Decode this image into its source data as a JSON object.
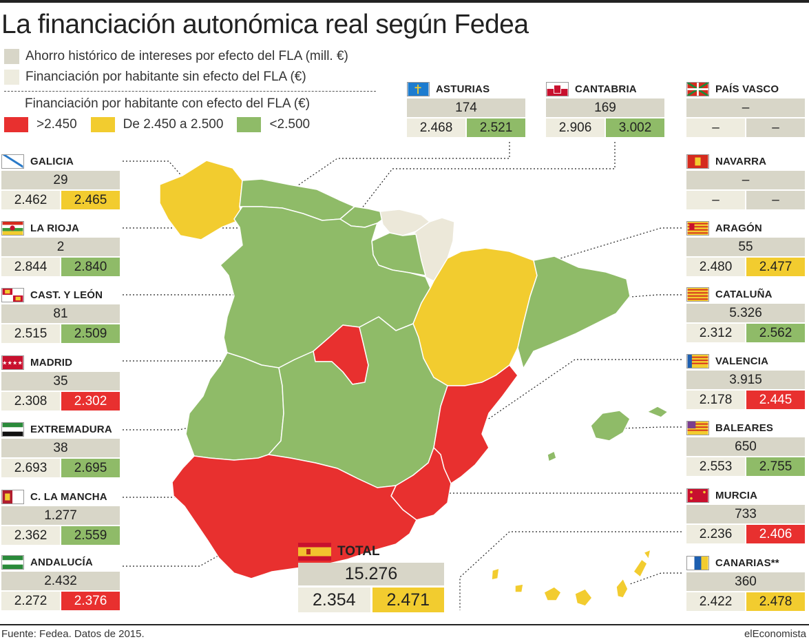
{
  "title": "La financiación autonómica real según Fedea",
  "legend": {
    "ahorro": "Ahorro histórico de intereses por efecto del FLA (mill. €)",
    "sin": "Financiación por habitante sin efecto del FLA (€)",
    "con": "Financiación por habitante con efecto del FLA (€)",
    "cat_red": ">2.450",
    "cat_yellow": "De 2.450 a 2.500",
    "cat_green": "<2.500"
  },
  "colors": {
    "red": "#e8302f",
    "yellow": "#f2cc2f",
    "green": "#8fbb68",
    "ahorro_grey": "#d8d6c8",
    "sin_beige": "#eeecdf",
    "no_data": "#ece8d9"
  },
  "regions": [
    {
      "id": "galicia",
      "name": "GALICIA",
      "flag": "flag-galicia-icon",
      "ahorro": "29",
      "sin": "2.462",
      "con": "2.465",
      "category": "yellow"
    },
    {
      "id": "larioja",
      "name": "LA RIOJA",
      "flag": "flag-la-rioja-icon",
      "ahorro": "2",
      "sin": "2.844",
      "con": "2.840",
      "category": "green"
    },
    {
      "id": "castleon",
      "name": "CAST. Y LEÓN",
      "flag": "flag-castilla-leon-icon",
      "ahorro": "81",
      "sin": "2.515",
      "con": "2.509",
      "category": "green"
    },
    {
      "id": "madrid",
      "name": "MADRID",
      "flag": "flag-madrid-icon",
      "ahorro": "35",
      "sin": "2.308",
      "con": "2.302",
      "category": "red"
    },
    {
      "id": "extremadura",
      "name": "EXTREMADURA",
      "flag": "flag-extremadura-icon",
      "ahorro": "38",
      "sin": "2.693",
      "con": "2.695",
      "category": "green"
    },
    {
      "id": "clamancha",
      "name": "C. LA MANCHA",
      "flag": "flag-castilla-la-mancha-icon",
      "ahorro": "1.277",
      "sin": "2.362",
      "con": "2.559",
      "category": "green"
    },
    {
      "id": "andalucia",
      "name": "ANDALUCÍA",
      "flag": "flag-andalucia-icon",
      "ahorro": "2.432",
      "sin": "2.272",
      "con": "2.376",
      "category": "red"
    },
    {
      "id": "asturias",
      "name": "ASTURIAS",
      "flag": "flag-asturias-icon",
      "ahorro": "174",
      "sin": "2.468",
      "con": "2.521",
      "category": "green"
    },
    {
      "id": "cantabria",
      "name": "CANTABRIA",
      "flag": "flag-cantabria-icon",
      "ahorro": "169",
      "sin": "2.906",
      "con": "3.002",
      "category": "green"
    },
    {
      "id": "paisvasco",
      "name": "PAÍS VASCO",
      "flag": "flag-pais-vasco-icon",
      "ahorro": "–",
      "sin": "–",
      "con": "–",
      "category": "none"
    },
    {
      "id": "navarra",
      "name": "NAVARRA",
      "flag": "flag-navarra-icon",
      "ahorro": "–",
      "sin": "–",
      "con": "–",
      "category": "none"
    },
    {
      "id": "aragon",
      "name": "ARAGÓN",
      "flag": "flag-aragon-icon",
      "ahorro": "55",
      "sin": "2.480",
      "con": "2.477",
      "category": "yellow"
    },
    {
      "id": "cataluna",
      "name": "CATALUÑA",
      "flag": "flag-cataluna-icon",
      "ahorro": "5.326",
      "sin": "2.312",
      "con": "2.562",
      "category": "green"
    },
    {
      "id": "valencia",
      "name": "VALENCIA",
      "flag": "flag-valencia-icon",
      "ahorro": "3.915",
      "sin": "2.178",
      "con": "2.445",
      "category": "red"
    },
    {
      "id": "baleares",
      "name": "BALEARES",
      "flag": "flag-baleares-icon",
      "ahorro": "650",
      "sin": "2.553",
      "con": "2.755",
      "category": "green"
    },
    {
      "id": "murcia",
      "name": "MURCIA",
      "flag": "flag-murcia-icon",
      "ahorro": "733",
      "sin": "2.236",
      "con": "2.406",
      "category": "red"
    },
    {
      "id": "canarias",
      "name": "CANARIAS**",
      "flag": "flag-canarias-icon",
      "ahorro": "360",
      "sin": "2.422",
      "con": "2.478",
      "category": "yellow"
    }
  ],
  "total": {
    "name": "TOTAL",
    "flag": "flag-spain-icon",
    "ahorro": "15.276",
    "sin": "2.354",
    "con": "2.471",
    "category": "yellow"
  },
  "footer": {
    "source": "Fuente: Fedea. Datos de 2015.",
    "brand": "elEconomista"
  }
}
